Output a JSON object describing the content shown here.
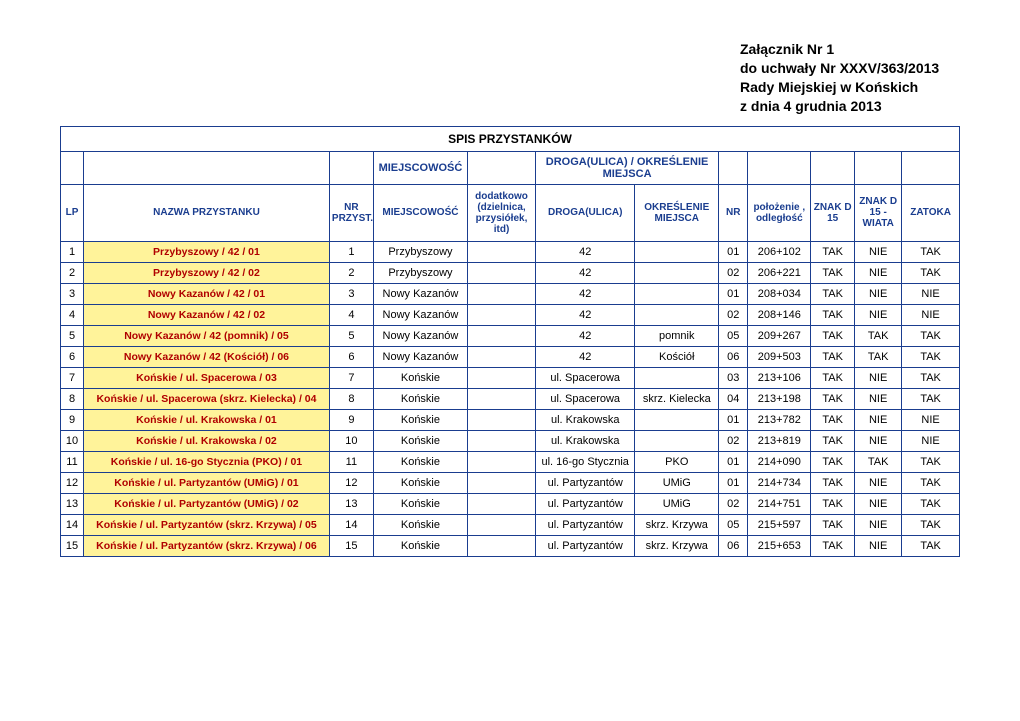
{
  "header": {
    "line1": "Załącznik Nr 1",
    "line2": "do uchwały Nr XXXV/363/2013",
    "line3": "Rady Miejskiej w Końskich",
    "line4": "z dnia 4 grudnia 2013"
  },
  "table": {
    "title": "SPIS PRZYSTANKÓW",
    "group_miejscowosc": "MIEJSCOWOŚĆ",
    "group_droga": "DROGA(ULICA) / OKREŚLENIE MIEJSCA",
    "columns": {
      "lp": "LP",
      "nazwa": "NAZWA PRZYSTANKU",
      "nr_przyst": "NR PRZYST.",
      "miejscowosc": "MIEJSCOWOŚĆ",
      "dodatkowo": "dodatkowo (dzielnica, przysiółek, itd)",
      "droga": "DROGA(ULICA)",
      "okreslenie": "OKREŚLENIE MIEJSCA",
      "nr": "NR",
      "polozenie": "położenie , odległość",
      "znak_d15": "ZNAK D 15",
      "znak_d15_wiata": "ZNAK D 15 - WIATA",
      "zatoka": "ZATOKA"
    },
    "rows": [
      {
        "lp": "1",
        "nazwa": "Przybyszowy  / 42 / 01",
        "nrp": "1",
        "miej": "Przybyszowy",
        "dod": "",
        "droga": "42",
        "okr": "",
        "nr": "01",
        "pol": "206+102",
        "z15": "TAK",
        "z15w": "NIE",
        "zat": "TAK"
      },
      {
        "lp": "2",
        "nazwa": "Przybyszowy  / 42 / 02",
        "nrp": "2",
        "miej": "Przybyszowy",
        "dod": "",
        "droga": "42",
        "okr": "",
        "nr": "02",
        "pol": "206+221",
        "z15": "TAK",
        "z15w": "NIE",
        "zat": "TAK"
      },
      {
        "lp": "3",
        "nazwa": "Nowy Kazanów  / 42 / 01",
        "nrp": "3",
        "miej": "Nowy Kazanów",
        "dod": "",
        "droga": "42",
        "okr": "",
        "nr": "01",
        "pol": "208+034",
        "z15": "TAK",
        "z15w": "NIE",
        "zat": "NIE"
      },
      {
        "lp": "4",
        "nazwa": "Nowy Kazanów  / 42 / 02",
        "nrp": "4",
        "miej": "Nowy Kazanów",
        "dod": "",
        "droga": "42",
        "okr": "",
        "nr": "02",
        "pol": "208+146",
        "z15": "TAK",
        "z15w": "NIE",
        "zat": "NIE"
      },
      {
        "lp": "5",
        "nazwa": "Nowy Kazanów  / 42 (pomnik) / 05",
        "nrp": "5",
        "miej": "Nowy Kazanów",
        "dod": "",
        "droga": "42",
        "okr": "pomnik",
        "nr": "05",
        "pol": "209+267",
        "z15": "TAK",
        "z15w": "TAK",
        "zat": "TAK"
      },
      {
        "lp": "6",
        "nazwa": "Nowy Kazanów  / 42 (Kościół) / 06",
        "nrp": "6",
        "miej": "Nowy Kazanów",
        "dod": "",
        "droga": "42",
        "okr": "Kościół",
        "nr": "06",
        "pol": "209+503",
        "z15": "TAK",
        "z15w": "TAK",
        "zat": "TAK"
      },
      {
        "lp": "7",
        "nazwa": "Końskie  / ul. Spacerowa  / 03",
        "nrp": "7",
        "miej": "Końskie",
        "dod": "",
        "droga": "ul. Spacerowa",
        "okr": "",
        "nr": "03",
        "pol": "213+106",
        "z15": "TAK",
        "z15w": "NIE",
        "zat": "TAK"
      },
      {
        "lp": "8",
        "nazwa": "Końskie  / ul. Spacerowa  (skrz. Kielecka)  / 04",
        "nrp": "8",
        "miej": "Końskie",
        "dod": "",
        "droga": "ul. Spacerowa",
        "okr": "skrz. Kielecka",
        "nr": "04",
        "pol": "213+198",
        "z15": "TAK",
        "z15w": "NIE",
        "zat": "TAK"
      },
      {
        "lp": "9",
        "nazwa": "Końskie  / ul. Krakowska  / 01",
        "nrp": "9",
        "miej": "Końskie",
        "dod": "",
        "droga": "ul. Krakowska",
        "okr": "",
        "nr": "01",
        "pol": "213+782",
        "z15": "TAK",
        "z15w": "NIE",
        "zat": "NIE"
      },
      {
        "lp": "10",
        "nazwa": "Końskie  / ul. Krakowska  / 02",
        "nrp": "10",
        "miej": "Końskie",
        "dod": "",
        "droga": "ul. Krakowska",
        "okr": "",
        "nr": "02",
        "pol": "213+819",
        "z15": "TAK",
        "z15w": "NIE",
        "zat": "NIE"
      },
      {
        "lp": "11",
        "nazwa": "Końskie  / ul. 16-go Stycznia  (PKO)  / 01",
        "nrp": "11",
        "miej": "Końskie",
        "dod": "",
        "droga": "ul. 16-go Stycznia",
        "okr": "PKO",
        "nr": "01",
        "pol": "214+090",
        "z15": "TAK",
        "z15w": "TAK",
        "zat": "TAK"
      },
      {
        "lp": "12",
        "nazwa": "Końskie  / ul. Partyzantów (UMiG)  / 01",
        "nrp": "12",
        "miej": "Końskie",
        "dod": "",
        "droga": "ul. Partyzantów",
        "okr": "UMiG",
        "nr": "01",
        "pol": "214+734",
        "z15": "TAK",
        "z15w": "NIE",
        "zat": "TAK"
      },
      {
        "lp": "13",
        "nazwa": "Końskie  / ul. Partyzantów (UMiG)  / 02",
        "nrp": "13",
        "miej": "Końskie",
        "dod": "",
        "droga": "ul. Partyzantów",
        "okr": "UMiG",
        "nr": "02",
        "pol": "214+751",
        "z15": "TAK",
        "z15w": "NIE",
        "zat": "TAK"
      },
      {
        "lp": "14",
        "nazwa": "Końskie  / ul. Partyzantów (skrz. Krzywa)  / 05",
        "nrp": "14",
        "miej": "Końskie",
        "dod": "",
        "droga": "ul. Partyzantów",
        "okr": "skrz. Krzywa",
        "nr": "05",
        "pol": "215+597",
        "z15": "TAK",
        "z15w": "NIE",
        "zat": "TAK"
      },
      {
        "lp": "15",
        "nazwa": "Końskie  / ul. Partyzantów (skrz. Krzywa)  / 06",
        "nrp": "15",
        "miej": "Końskie",
        "dod": "",
        "droga": "ul. Partyzantów",
        "okr": "skrz. Krzywa",
        "nr": "06",
        "pol": "215+653",
        "z15": "TAK",
        "z15w": "NIE",
        "zat": "TAK"
      }
    ]
  }
}
